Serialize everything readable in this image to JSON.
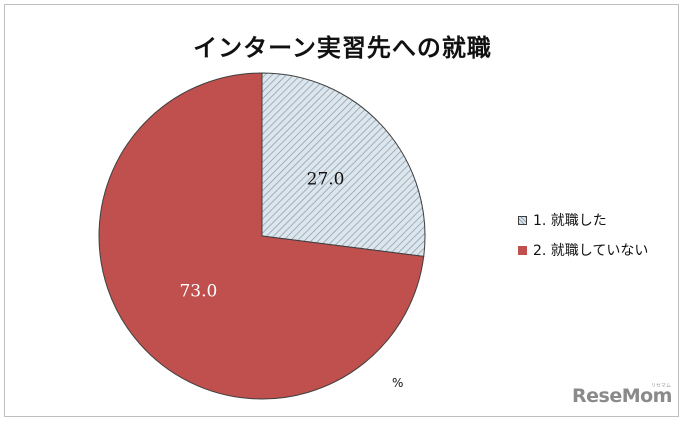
{
  "chart_data": {
    "type": "pie",
    "title": "インターン実習先への就職",
    "unit": "%",
    "slices": [
      {
        "label": "1.  就職した",
        "value": 27.0,
        "value_label": "27.0",
        "color": "#dde6ec",
        "pattern": "diagonal-hatch"
      },
      {
        "label": "2.  就職していない",
        "value": 73.0,
        "value_label": "73.0",
        "color": "#c0504d",
        "pattern": "solid"
      }
    ],
    "start_angle_deg": 0,
    "direction": "clockwise",
    "legend_position": "right"
  },
  "logo": {
    "text": "ReseMom",
    "sub": "リセマム"
  },
  "colors": {
    "slice_edge": "#3f3f3f",
    "hatch_line": "#8fa3b3",
    "frame": "#bfbfbf"
  }
}
